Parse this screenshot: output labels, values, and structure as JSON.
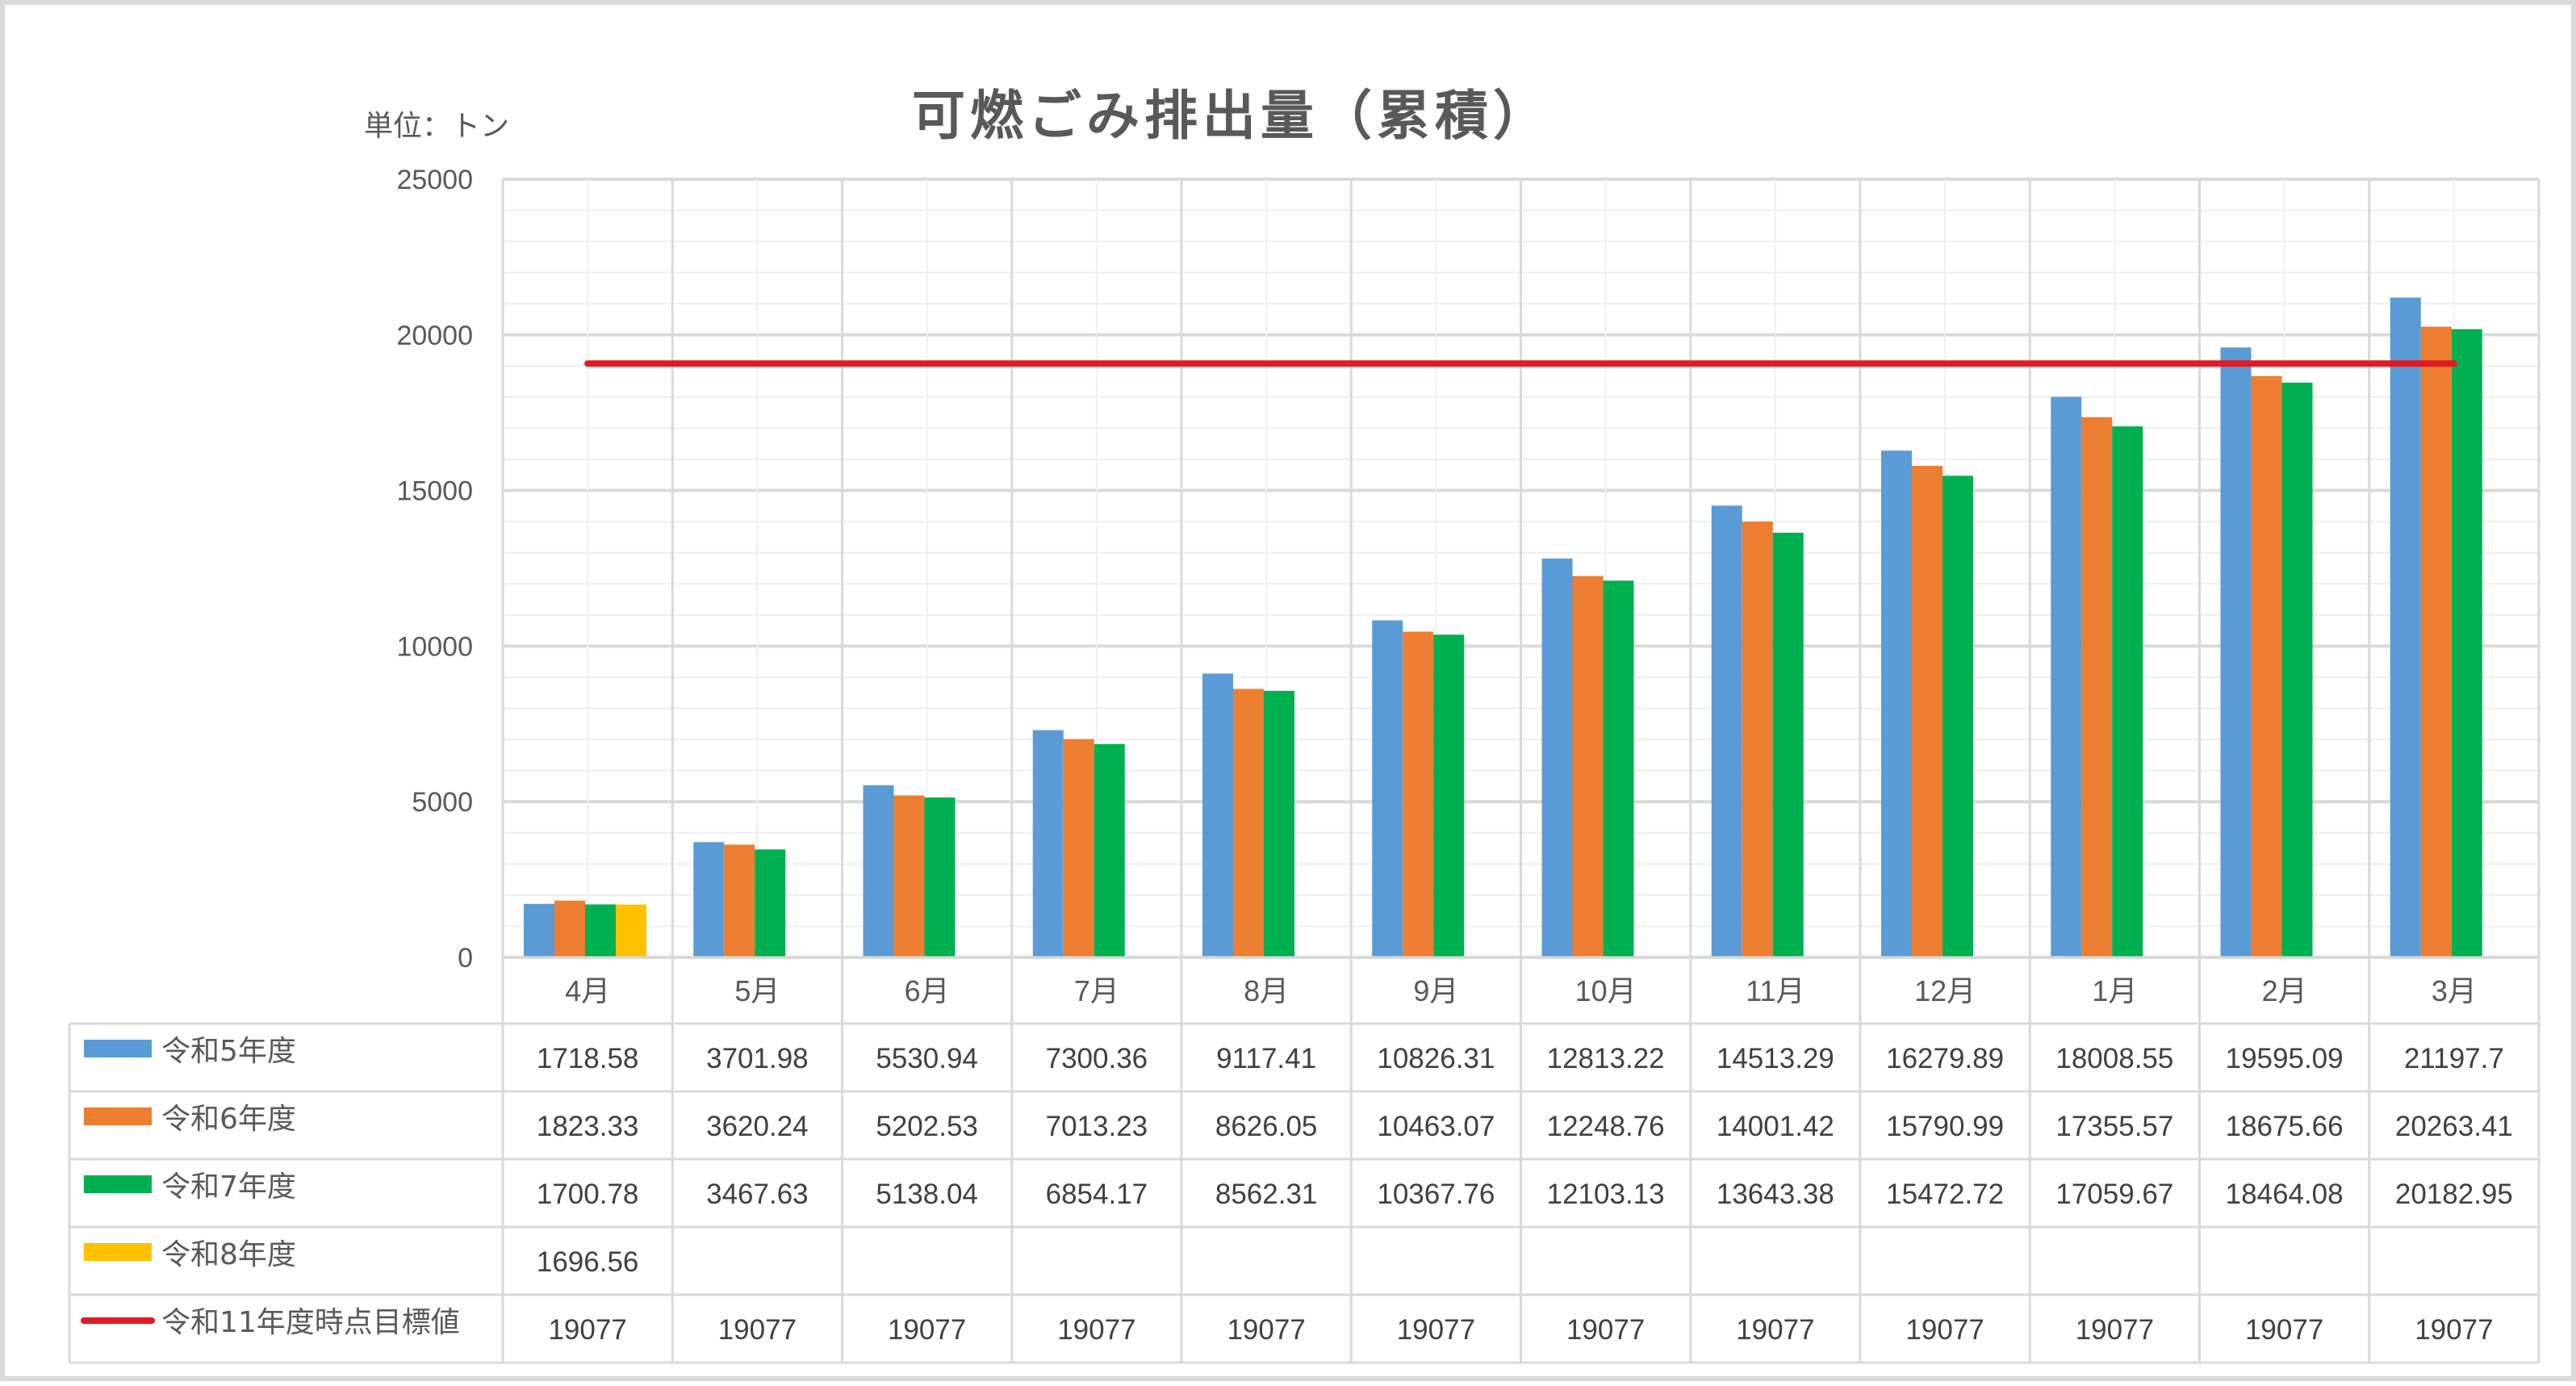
{
  "chart_data": {
    "type": "bar",
    "title": "可燃ごみ排出量（累積）",
    "unit_label": "単位：トン",
    "categories": [
      "4月",
      "5月",
      "6月",
      "7月",
      "8月",
      "9月",
      "10月",
      "11月",
      "12月",
      "1月",
      "2月",
      "3月"
    ],
    "ylim": [
      0,
      25000
    ],
    "yticks": [
      0,
      5000,
      10000,
      15000,
      20000,
      25000
    ],
    "grid": true,
    "legend_placement": "data-table",
    "series": [
      {
        "name": "令和5年度",
        "color": "#5b9bd5",
        "kind": "bar",
        "values": [
          1718.58,
          3701.98,
          5530.94,
          7300.36,
          9117.41,
          10826.31,
          12813.22,
          14513.29,
          16279.89,
          18008.55,
          19595.09,
          21197.7
        ]
      },
      {
        "name": "令和6年度",
        "color": "#ed7d31",
        "kind": "bar",
        "values": [
          1823.33,
          3620.24,
          5202.53,
          7013.23,
          8626.05,
          10463.07,
          12248.76,
          14001.42,
          15790.99,
          17355.57,
          18675.66,
          20263.41
        ]
      },
      {
        "name": "令和7年度",
        "color": "#00b050",
        "kind": "bar",
        "values": [
          1700.78,
          3467.63,
          5138.04,
          6854.17,
          8562.31,
          10367.76,
          12103.13,
          13643.38,
          15472.72,
          17059.67,
          18464.08,
          20182.95
        ]
      },
      {
        "name": "令和8年度",
        "color": "#ffc000",
        "kind": "bar",
        "values": [
          1696.56,
          null,
          null,
          null,
          null,
          null,
          null,
          null,
          null,
          null,
          null,
          null
        ]
      },
      {
        "name": "令和11年度時点目標値",
        "color": "#e01b22",
        "kind": "line",
        "values": [
          19077,
          19077,
          19077,
          19077,
          19077,
          19077,
          19077,
          19077,
          19077,
          19077,
          19077,
          19077
        ]
      }
    ]
  }
}
